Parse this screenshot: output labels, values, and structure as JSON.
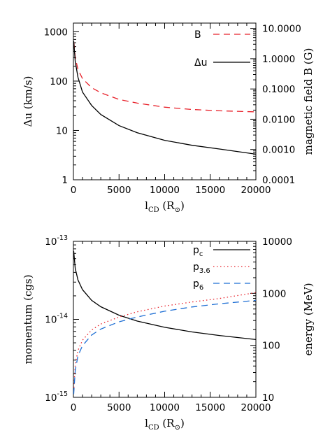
{
  "chart_data": [
    {
      "type": "line",
      "panel": "top",
      "x_axis": {
        "label_main": "l",
        "label_sub": "CD",
        "label_unit": "(R",
        "label_unit_close": ")",
        "range": [
          0,
          20000
        ],
        "scale": "linear",
        "ticks": [
          "0",
          "5000",
          "10000",
          "15000",
          "20000"
        ]
      },
      "y_left": {
        "label": "Δu (km/s)",
        "range": [
          1,
          1500
        ],
        "scale": "log",
        "ticks": [
          "1",
          "10",
          "100",
          "1000"
        ]
      },
      "y_right": {
        "label": "magnetic field B (G)",
        "range": [
          0.0001,
          15
        ],
        "scale": "log",
        "ticks": [
          "0.0001",
          "0.0010",
          "0.0100",
          "0.1000",
          "1.0000",
          "10.0000"
        ]
      },
      "series": [
        {
          "name": "B",
          "axis": "right",
          "color": "#e8212a",
          "style": "dashed",
          "x": [
            50,
            200,
            500,
            1000,
            2000,
            3000,
            5000,
            7000,
            10000,
            13000,
            16000,
            20000
          ],
          "values": [
            3.5,
            1.1,
            0.44,
            0.22,
            0.11,
            0.075,
            0.045,
            0.034,
            0.025,
            0.021,
            0.019,
            0.0175
          ]
        },
        {
          "name": "Δu",
          "axis": "left",
          "color": "#000000",
          "style": "solid",
          "x": [
            30,
            200,
            500,
            1000,
            2000,
            3000,
            5000,
            7000,
            10000,
            13000,
            16000,
            20000
          ],
          "values": [
            650,
            250,
            120,
            60,
            32,
            21,
            12.5,
            9,
            6.3,
            5,
            4.2,
            3.3
          ]
        }
      ]
    },
    {
      "type": "line",
      "panel": "bottom",
      "x_axis": {
        "label_main": "l",
        "label_sub": "CD",
        "label_unit": "(R",
        "label_unit_close": ")",
        "range": [
          0,
          20000
        ],
        "scale": "linear",
        "ticks": [
          "0",
          "5000",
          "10000",
          "15000",
          "20000"
        ]
      },
      "y_left": {
        "label": "momentum (cgs)",
        "range": [
          1e-15,
          1e-13
        ],
        "scale": "log",
        "ticks": [
          "10",
          "10",
          "10"
        ],
        "tick_exponents": [
          "-15",
          "-14",
          "-13"
        ]
      },
      "y_right": {
        "label": "energy (MeV)",
        "range": [
          10,
          10000
        ],
        "scale": "log",
        "ticks": [
          "10",
          "100",
          "1000",
          "10000"
        ]
      },
      "series": [
        {
          "name_main": "p",
          "name_sub": "c",
          "color": "#000000",
          "style": "solid",
          "x": [
            30,
            200,
            500,
            1000,
            2000,
            3000,
            5000,
            7000,
            10000,
            13000,
            16000,
            20000
          ],
          "values": [
            7.5e-14,
            4.5e-14,
            3.2e-14,
            2.4e-14,
            1.75e-14,
            1.45e-14,
            1.13e-14,
            9.5e-15,
            7.9e-15,
            6.9e-15,
            6.2e-15,
            5.5e-15
          ]
        },
        {
          "name_main": "p",
          "name_sub": "3.6",
          "color": "#e8212a",
          "style": "dotted",
          "x": [
            30,
            200,
            500,
            1000,
            2000,
            3000,
            5000,
            7000,
            10000,
            13000,
            16000,
            20000
          ],
          "values": [
            1.2e-15,
            2.6e-15,
            4e-15,
            5.4e-15,
            7.3e-15,
            8.7e-15,
            1.07e-14,
            1.25e-14,
            1.48e-14,
            1.67e-14,
            1.85e-14,
            2.2e-14
          ]
        },
        {
          "name_main": "p",
          "name_sub": "6",
          "color": "#1f6fd4",
          "style": "dashed",
          "x": [
            30,
            200,
            500,
            1000,
            2000,
            3000,
            5000,
            7000,
            10000,
            13000,
            16000,
            20000
          ],
          "values": [
            1.1e-15,
            2.2e-15,
            3.4e-15,
            4.6e-15,
            6.3e-15,
            7.5e-15,
            9.3e-15,
            1.07e-14,
            1.27e-14,
            1.44e-14,
            1.58e-14,
            1.75e-14
          ]
        }
      ]
    }
  ],
  "colors": {
    "axis": "#000000",
    "red": "#e8212a",
    "blue": "#1f6fd4"
  }
}
